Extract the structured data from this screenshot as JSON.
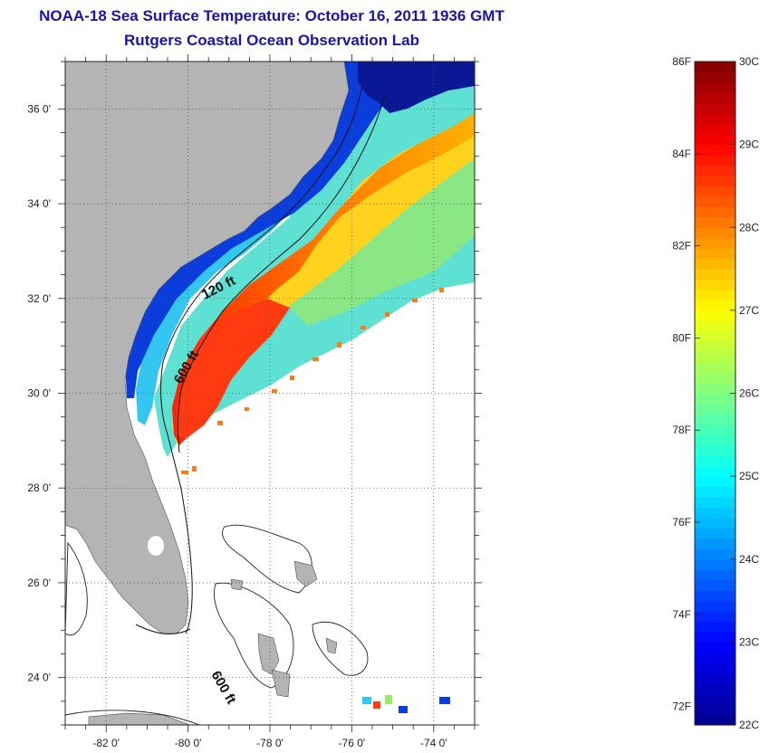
{
  "title": "NOAA-18 Sea Surface Temperature:  October 16, 2011 1936 GMT",
  "subtitle": "Rutgers Coastal Ocean Observation Lab",
  "map": {
    "lon_range": [
      -83,
      -73
    ],
    "lat_range": [
      23,
      37
    ],
    "lon_ticks": [
      -82,
      -80,
      -78,
      -76,
      -74
    ],
    "lon_tick_labels": [
      "-82 0'",
      "-80 0'",
      "-78 0'",
      "-76 0'",
      "-74 0'"
    ],
    "lat_ticks": [
      24,
      26,
      28,
      30,
      32,
      34,
      36
    ],
    "lat_tick_labels": [
      "24 0'",
      "26 0'",
      "28 0'",
      "30 0'",
      "32 0'",
      "34 0'",
      "36 0'"
    ],
    "grid": "dotted",
    "land_color": "#b4b4b4",
    "contour_labels": [
      "120 ft",
      "600 ft",
      "600 ft"
    ]
  },
  "colorbar": {
    "celsius_labels": [
      "30C",
      "29C",
      "28C",
      "27C",
      "26C",
      "25C",
      "24C",
      "23C",
      "22C"
    ],
    "fahrenheit_labels": [
      "86F",
      "84F",
      "82F",
      "80F",
      "78F",
      "76F",
      "74F",
      "72F"
    ],
    "min_c": 22,
    "max_c": 30,
    "min_f": 72,
    "max_f": 86,
    "colors": [
      "#00008f",
      "#0000ff",
      "#0080ff",
      "#00ffff",
      "#80ff80",
      "#ffff00",
      "#ff8000",
      "#ff0000",
      "#800000"
    ]
  }
}
